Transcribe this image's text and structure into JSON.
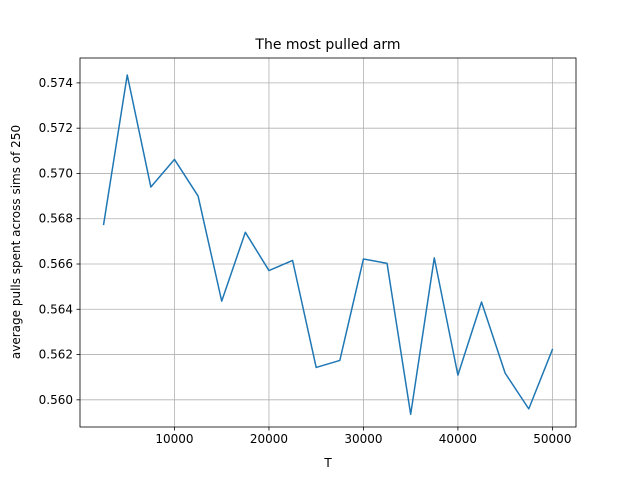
{
  "chart_data": {
    "type": "line",
    "title": "The most pulled arm",
    "xlabel": "T",
    "ylabel": "average pulls spent across sims of 250",
    "xlim": [
      0,
      52500
    ],
    "ylim": [
      0.5588,
      0.5751
    ],
    "xticks": [
      10000,
      20000,
      30000,
      40000,
      50000
    ],
    "yticks": [
      0.56,
      0.562,
      0.564,
      0.566,
      0.568,
      0.57,
      0.572,
      0.574
    ],
    "ytick_labels": [
      "0.560",
      "0.562",
      "0.564",
      "0.566",
      "0.568",
      "0.570",
      "0.572",
      "0.574"
    ],
    "grid": true,
    "series": [
      {
        "color": "#1f77b4",
        "x": [
          2500,
          5000,
          7500,
          10000,
          12500,
          15000,
          17500,
          20000,
          22500,
          25000,
          27500,
          30000,
          32500,
          35000,
          37500,
          40000,
          42500,
          45000,
          47500,
          50000
        ],
        "y": [
          0.56775,
          0.57435,
          0.5694,
          0.57062,
          0.569,
          0.56436,
          0.5674,
          0.56571,
          0.56616,
          0.56143,
          0.56174,
          0.56622,
          0.56603,
          0.55936,
          0.56627,
          0.56109,
          0.56432,
          0.56118,
          0.5596,
          0.56222
        ]
      }
    ]
  }
}
